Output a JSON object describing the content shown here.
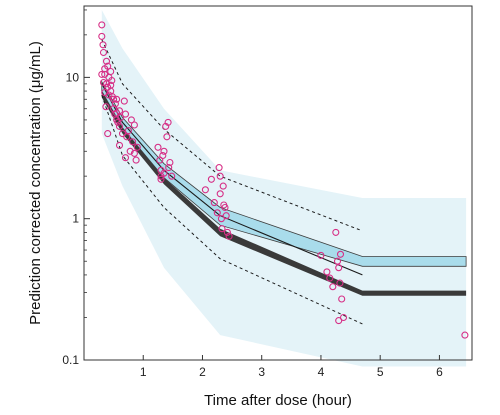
{
  "chart_data": {
    "type": "scatter",
    "xlabel": "Time after dose (hour)",
    "ylabel": "Prediction corrected concentration (μg/mL)",
    "x_scale": "linear",
    "y_scale": "log",
    "xlim": [
      0,
      6.55
    ],
    "ylim": [
      0.1,
      32
    ],
    "x_ticks": [
      1,
      2,
      3,
      4,
      5,
      6
    ],
    "y_ticks": [
      0.1,
      1,
      10
    ],
    "y_tick_labels": [
      "0.1",
      "1",
      "10"
    ],
    "grid": false,
    "legend": "none",
    "x_bins": [
      0.3,
      0.65,
      1.35,
      2.3,
      4.7,
      6.45
    ],
    "outer_band": {
      "lower": [
        4.0,
        1.7,
        0.45,
        0.15,
        0.09,
        0.09
      ],
      "upper": [
        30.0,
        16.0,
        6.0,
        2.2,
        1.4,
        1.4
      ]
    },
    "median_ci": {
      "lower": [
        8.0,
        4.4,
        1.95,
        0.9,
        0.46,
        0.46
      ],
      "upper": [
        9.3,
        5.2,
        2.45,
        1.2,
        0.54,
        0.54
      ]
    },
    "lower_ci_dark": {
      "lower": [
        7.2,
        4.0,
        1.75,
        0.75,
        0.285,
        0.285
      ],
      "upper": [
        8.0,
        4.4,
        1.95,
        0.85,
        0.31,
        0.31
      ]
    },
    "observed_median": {
      "x": [
        0.3,
        0.65,
        1.35,
        2.3,
        4.7
      ],
      "y": [
        9.0,
        4.8,
        2.2,
        1.05,
        0.4
      ]
    },
    "observed_p95": {
      "x": [
        0.3,
        0.65,
        1.35,
        2.3,
        4.7
      ],
      "y": [
        18.5,
        9.0,
        4.3,
        2.0,
        0.82
      ]
    },
    "observed_p5": {
      "x": [
        0.3,
        0.65,
        1.35,
        2.3,
        4.7
      ],
      "y": [
        7.5,
        2.8,
        1.2,
        0.52,
        0.18
      ]
    },
    "observations": {
      "x": [
        0.3,
        0.3,
        0.32,
        0.33,
        0.35,
        0.35,
        0.38,
        0.38,
        0.4,
        0.4,
        0.42,
        0.42,
        0.45,
        0.45,
        0.47,
        0.5,
        0.5,
        0.52,
        0.53,
        0.55,
        0.55,
        0.57,
        0.6,
        0.6,
        0.62,
        0.65,
        0.68,
        0.7,
        0.72,
        0.75,
        0.78,
        0.8,
        0.82,
        0.85,
        0.85,
        0.88,
        0.9,
        0.35,
        0.4,
        0.45,
        0.55,
        0.7,
        0.3,
        0.33,
        0.37,
        0.48,
        0.6,
        1.25,
        1.28,
        1.3,
        1.3,
        1.33,
        1.35,
        1.38,
        1.4,
        1.43,
        1.45,
        1.48,
        1.3,
        1.35,
        1.42,
        2.05,
        2.15,
        2.2,
        2.25,
        2.28,
        2.3,
        2.32,
        2.35,
        2.38,
        2.4,
        2.42,
        2.45,
        2.3,
        2.33,
        2.36,
        4.0,
        4.1,
        4.15,
        4.2,
        4.25,
        4.28,
        4.3,
        4.32,
        4.35,
        4.38,
        4.3,
        4.33,
        6.43
      ],
      "y": [
        23.5,
        19.5,
        17.0,
        15.0,
        11.5,
        10.5,
        13.0,
        9.0,
        12.0,
        8.5,
        10.0,
        7.5,
        11.0,
        8.0,
        9.5,
        7.0,
        6.0,
        5.5,
        6.5,
        5.0,
        7.0,
        4.8,
        5.8,
        4.5,
        5.2,
        4.0,
        6.8,
        5.5,
        3.8,
        4.2,
        3.0,
        5.0,
        3.5,
        2.9,
        4.6,
        2.6,
        3.2,
        7.8,
        4.0,
        8.8,
        5.6,
        2.7,
        10.5,
        9.2,
        6.2,
        7.3,
        3.3,
        3.2,
        2.6,
        2.2,
        2.0,
        2.8,
        2.1,
        4.5,
        3.8,
        2.3,
        2.5,
        2.0,
        1.9,
        3.0,
        4.8,
        1.6,
        1.9,
        1.3,
        1.1,
        2.3,
        2.0,
        1.0,
        1.7,
        1.2,
        1.05,
        0.8,
        0.75,
        1.5,
        0.85,
        1.25,
        0.55,
        0.42,
        0.38,
        0.33,
        0.8,
        0.5,
        0.45,
        0.35,
        0.27,
        0.2,
        0.19,
        0.56,
        0.15
      ]
    }
  }
}
